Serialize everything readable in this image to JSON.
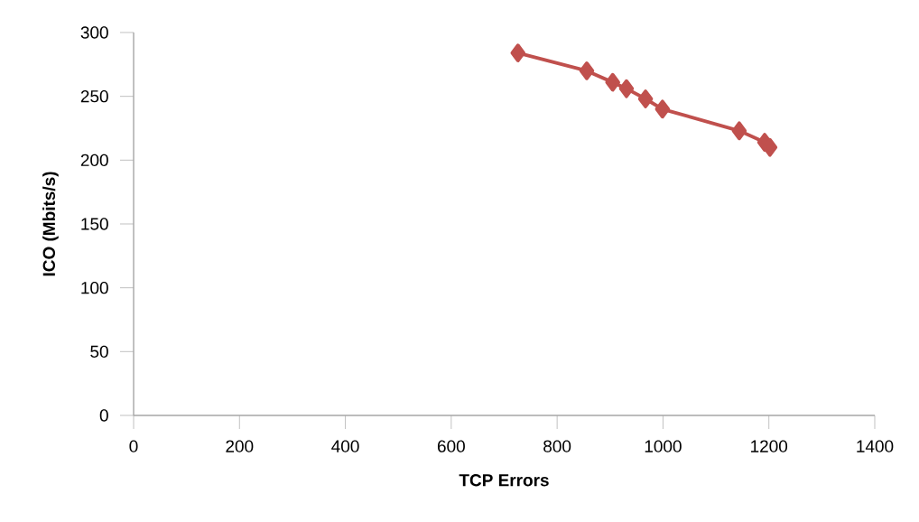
{
  "chart_data": {
    "type": "line",
    "xlabel": "TCP Errors",
    "ylabel": "ICO (Mbits/s)",
    "x": [
      726,
      856,
      905,
      931,
      967,
      999,
      1144,
      1192,
      1202
    ],
    "series": [
      {
        "color": "#c0504d",
        "values": [
          284,
          270,
          261,
          256,
          248,
          240,
          223,
          214,
          210
        ]
      }
    ],
    "xlim": [
      0,
      1400
    ],
    "xticks": [
      0,
      200,
      400,
      600,
      800,
      1000,
      1200,
      1400
    ],
    "ylim": [
      0,
      300
    ],
    "yticks": [
      0,
      50,
      100,
      150,
      200,
      250,
      300
    ],
    "marker": "diamond",
    "line_style": "solid"
  }
}
